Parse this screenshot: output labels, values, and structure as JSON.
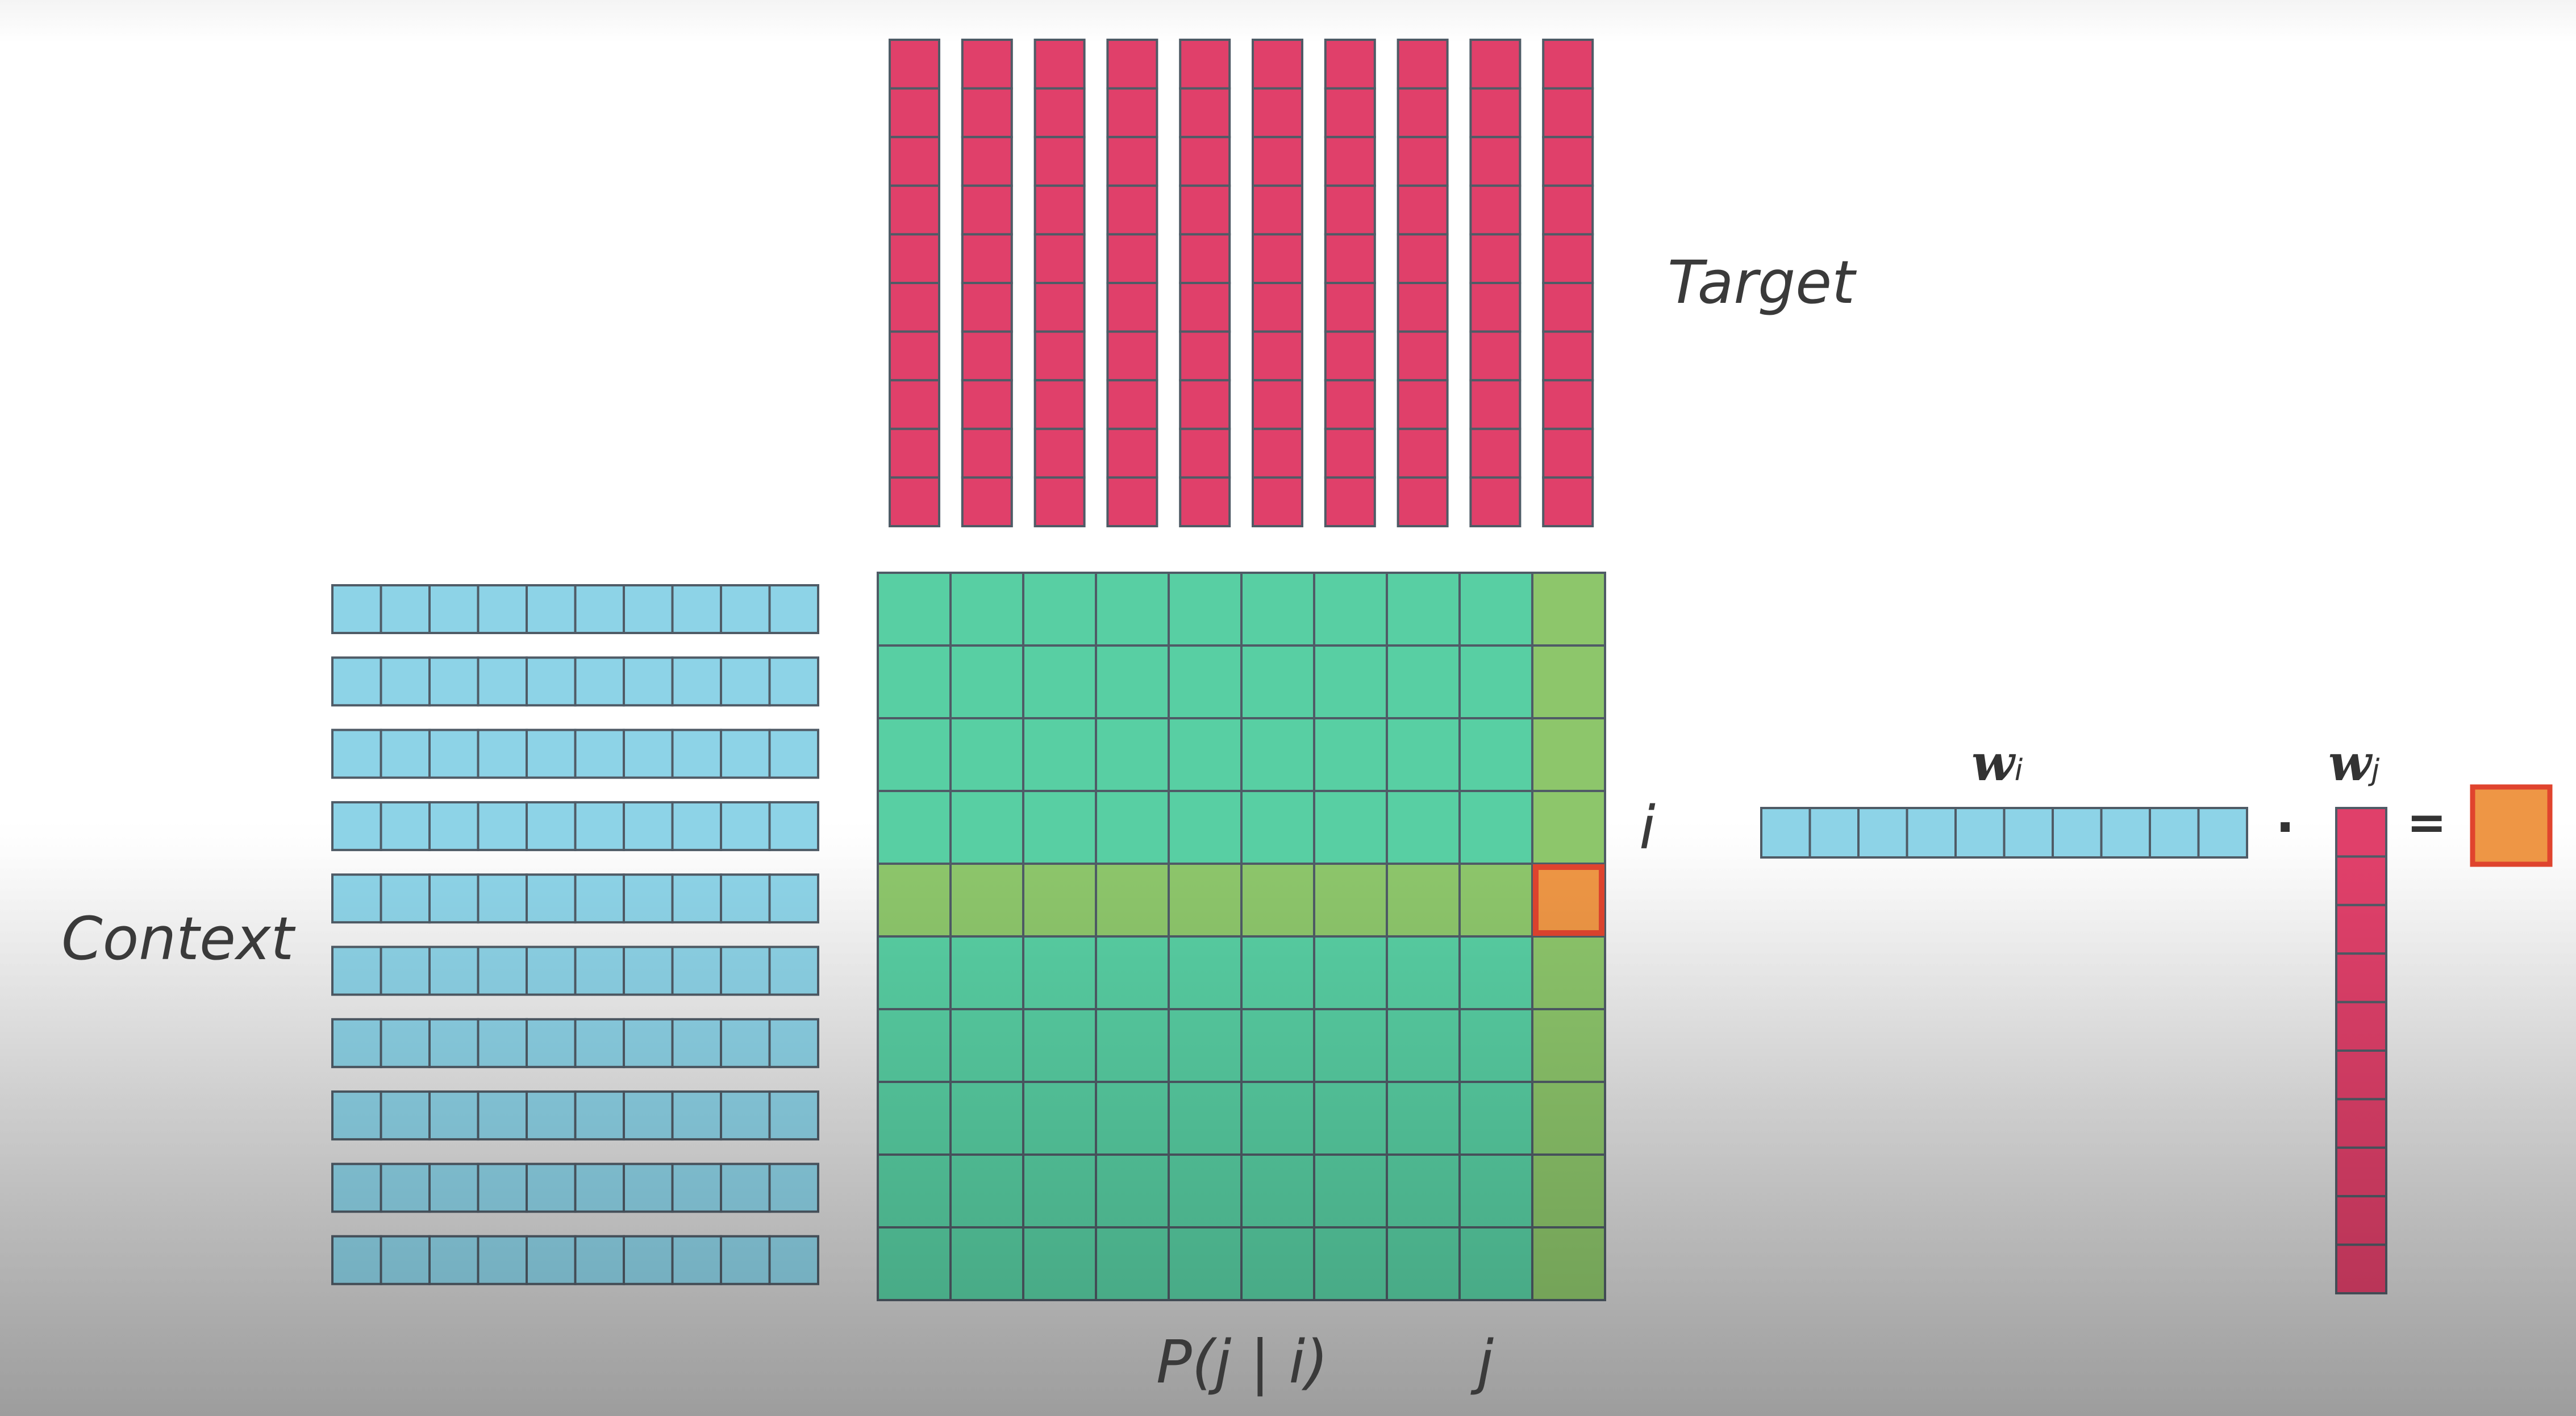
{
  "labels": {
    "target": "Target",
    "context": "Context",
    "row_index": "i",
    "column_index": "j",
    "probability": "P(j | i)",
    "wi_symbol": "w",
    "wi_subscript": "i",
    "wj_symbol": "w",
    "wj_subscript": "j",
    "dot": "·",
    "equals": "="
  },
  "grid": {
    "rows": 10,
    "columns": 10,
    "highlighted_row": 4,
    "highlighted_column": 9
  },
  "embedding_dim": 10,
  "colors": {
    "target_vector": "#e0406a",
    "context_vector": "#8dd3e7",
    "matrix_cell": "#58cfa3",
    "highlight_cell": "#8dc66b",
    "selected_cell": "#ee9645",
    "selected_border": "#e0442e",
    "cell_border": "#4f5b66"
  },
  "icons": {
    "dot_operator": "dot-product-icon",
    "equals_operator": "equals-icon"
  }
}
